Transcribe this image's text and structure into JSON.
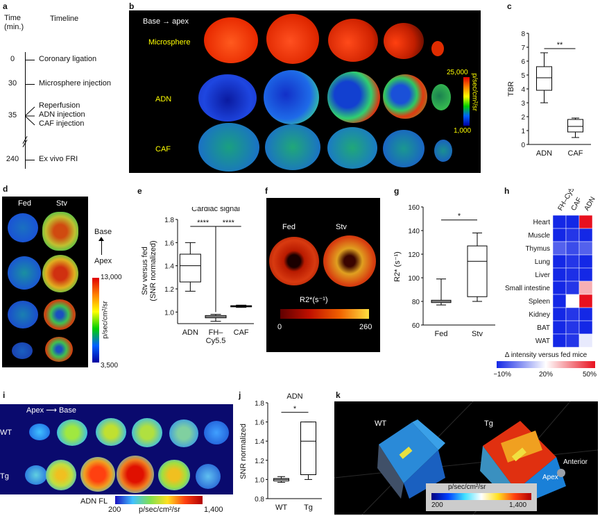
{
  "panel_letters": {
    "a": "a",
    "b": "b",
    "c": "c",
    "d": "d",
    "e": "e",
    "f": "f",
    "g": "g",
    "h": "h",
    "i": "i",
    "j": "j",
    "k": "k"
  },
  "timeline": {
    "time_label": "Time\n(min.)",
    "title": "Timeline",
    "events": [
      {
        "time": "0",
        "text": "Coronary ligation"
      },
      {
        "time": "30",
        "text": "Microsphere injection"
      },
      {
        "time": "35",
        "text": "Reperfusion\nADN injection\nCAF injection"
      },
      {
        "time": "240",
        "text": "Ex vivo FRI"
      }
    ]
  },
  "panel_b": {
    "direction": "Base → apex",
    "rows": [
      "Microsphere",
      "ADN",
      "CAF"
    ],
    "scale_max": "25,000",
    "scale_min": "1,000",
    "scale_unit": "p/sec/cm²/sr"
  },
  "panel_d": {
    "cols": [
      "Fed",
      "Stv"
    ],
    "arrow_top": "Base",
    "arrow_bottom": "Apex",
    "scale_max": "13,000",
    "scale_min": "3,500",
    "scale_unit": "p/sec/cm²/sr"
  },
  "panel_f": {
    "cols": [
      "Fed",
      "Stv"
    ],
    "scale_label": "R2*(s⁻¹)",
    "scale_min": "0",
    "scale_max": "260"
  },
  "panel_h": {
    "columns": [
      "FH–Cy5.5",
      "CAF",
      "ADN"
    ],
    "rows": [
      "Heart",
      "Muscle",
      "Thymus",
      "Lung",
      "Liver",
      "Small intestine",
      "Spleen",
      "Kidney",
      "BAT",
      "WAT"
    ],
    "values": [
      [
        -10,
        -10,
        50
      ],
      [
        -10,
        -8,
        -10
      ],
      [
        -2,
        -5,
        -2
      ],
      [
        -10,
        -8,
        -10
      ],
      [
        -10,
        -9,
        -10
      ],
      [
        -10,
        -8,
        30
      ],
      [
        -10,
        20,
        50
      ],
      [
        -10,
        -8,
        -10
      ],
      [
        -10,
        -8,
        -10
      ],
      [
        -10,
        -8,
        17
      ]
    ],
    "scale_label": "Δ intensity versus fed mice",
    "scale_ticks": [
      "−10%",
      "20%",
      "50%"
    ],
    "colors": {
      "low": "#1428e6",
      "mid": "#ffffff",
      "high": "#e8101e"
    }
  },
  "panel_i": {
    "direction": "Apex ⟶ Base",
    "rows": [
      "WT",
      "Tg"
    ],
    "scale_title": "ADN FL",
    "scale_min": "200",
    "scale_max": "1,400",
    "scale_unit": "p/sec/cm²/sr"
  },
  "panel_k": {
    "labels": [
      "WT",
      "Tg"
    ],
    "scale_unit": "p/sec/cm²/sr",
    "scale_min": "200",
    "scale_max": "1,400",
    "anterior": "Anterior",
    "apex": "Apex"
  },
  "chart_data": [
    {
      "id": "c",
      "type": "box",
      "categories": [
        "ADN",
        "CAF"
      ],
      "ylabel": "TBR",
      "ylim": [
        0,
        8
      ],
      "yticks": [
        0,
        1,
        2,
        3,
        4,
        5,
        6,
        7,
        8
      ],
      "boxes": [
        {
          "min": 3.0,
          "q1": 3.9,
          "median": 4.8,
          "q3": 5.6,
          "max": 6.6
        },
        {
          "min": 0.5,
          "q1": 0.9,
          "median": 1.3,
          "q3": 1.8,
          "max": 1.9
        }
      ],
      "significance": "**"
    },
    {
      "id": "e",
      "type": "box",
      "title": "Cardiac signal",
      "categories": [
        "ADN",
        "FH–\nCy5.5",
        "CAF"
      ],
      "ylabel": "Stv versus fed\n(SNR normalized)",
      "ylim": [
        0.9,
        1.8
      ],
      "yticks": [
        1.0,
        1.2,
        1.4,
        1.6,
        1.8
      ],
      "boxes": [
        {
          "min": 1.18,
          "q1": 1.26,
          "median": 1.4,
          "q3": 1.5,
          "max": 1.6
        },
        {
          "min": 0.92,
          "q1": 0.95,
          "median": 0.96,
          "q3": 0.97,
          "max": 0.98
        },
        {
          "min": 1.04,
          "q1": 1.045,
          "median": 1.05,
          "q3": 1.055,
          "max": 1.06
        }
      ],
      "significance": [
        "****",
        "****"
      ]
    },
    {
      "id": "g",
      "type": "box",
      "categories": [
        "Fed",
        "Stv"
      ],
      "ylabel": "R2* (s⁻¹)",
      "ylim": [
        60,
        160
      ],
      "yticks": [
        60,
        80,
        100,
        120,
        140,
        160
      ],
      "boxes": [
        {
          "min": 77,
          "q1": 79,
          "median": 80,
          "q3": 81,
          "max": 99
        },
        {
          "min": 80,
          "q1": 84,
          "median": 114,
          "q3": 127,
          "max": 138
        }
      ],
      "significance": "*"
    },
    {
      "id": "j",
      "type": "box",
      "title": "ADN",
      "categories": [
        "WT",
        "Tg"
      ],
      "ylabel": "SNR normalized",
      "ylim": [
        0.8,
        1.8
      ],
      "yticks": [
        0.8,
        1.0,
        1.2,
        1.4,
        1.6,
        1.8
      ],
      "boxes": [
        {
          "min": 0.97,
          "q1": 0.985,
          "median": 1.0,
          "q3": 1.01,
          "max": 1.03
        },
        {
          "min": 1.0,
          "q1": 1.05,
          "median": 1.4,
          "q3": 1.6,
          "max": 1.6
        }
      ],
      "significance": "*"
    }
  ]
}
